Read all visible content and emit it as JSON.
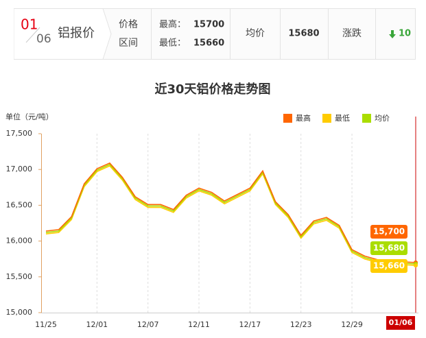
{
  "header": {
    "date_month": "01",
    "date_day": "06",
    "name": "铝报价",
    "range_label": [
      "价格",
      "区间"
    ],
    "high_label": "最高：",
    "high": 15700,
    "low_label": "最低：",
    "low": 15660,
    "avg_label": "均价",
    "avg": 15680,
    "change_label": "涨跌",
    "change": 10
  },
  "chart_data": {
    "type": "line",
    "title": "近30天铝价格走势图",
    "y_label": "单位（元/吨）",
    "categories": [
      "11/25",
      null,
      null,
      null,
      "12/01",
      null,
      null,
      null,
      "12/07",
      null,
      null,
      null,
      "12/11",
      null,
      null,
      null,
      "12/17",
      null,
      null,
      null,
      "12/23",
      null,
      null,
      null,
      "12/29",
      null,
      null,
      null,
      null,
      "01/06"
    ],
    "series": [
      {
        "name": "最高",
        "color": "#ff6600",
        "values": [
          16140,
          16160,
          16340,
          16800,
          17010,
          17090,
          16890,
          16620,
          16510,
          16510,
          16440,
          16640,
          16740,
          16680,
          16560,
          16650,
          16740,
          16980,
          16550,
          16370,
          16080,
          16280,
          16330,
          16220,
          15880,
          15790,
          15740,
          15720,
          15710,
          15700
        ],
        "value_labels": [
          null,
          null,
          null,
          null,
          null,
          null,
          null,
          null,
          null,
          null,
          null,
          null,
          null,
          null,
          null,
          null,
          null,
          null,
          null,
          null,
          null,
          null,
          null,
          null,
          null,
          null,
          null,
          null,
          null,
          "15,700"
        ]
      },
      {
        "name": "最低",
        "color": "#ffcc00",
        "values": [
          16100,
          16120,
          16300,
          16760,
          16970,
          17050,
          16850,
          16580,
          16470,
          16470,
          16400,
          16600,
          16700,
          16640,
          16520,
          16610,
          16700,
          16940,
          16510,
          16330,
          16040,
          16240,
          16290,
          16180,
          15840,
          15750,
          15700,
          15680,
          15670,
          15660
        ],
        "value_labels": [
          null,
          null,
          null,
          null,
          null,
          null,
          null,
          null,
          null,
          null,
          null,
          null,
          null,
          null,
          null,
          null,
          null,
          null,
          null,
          null,
          null,
          null,
          null,
          null,
          null,
          null,
          null,
          null,
          null,
          "15,660"
        ]
      },
      {
        "name": "均价",
        "color": "#aadd00",
        "values": [
          16120,
          16140,
          16320,
          16780,
          16990,
          17070,
          16870,
          16600,
          16490,
          16490,
          16420,
          16620,
          16720,
          16660,
          16540,
          16630,
          16720,
          16960,
          16530,
          16350,
          16060,
          16260,
          16310,
          16200,
          15860,
          15770,
          15720,
          15700,
          15690,
          15680
        ],
        "value_labels": [
          null,
          null,
          null,
          null,
          null,
          null,
          null,
          null,
          null,
          null,
          null,
          null,
          null,
          null,
          null,
          null,
          null,
          null,
          null,
          null,
          null,
          null,
          null,
          null,
          null,
          null,
          null,
          null,
          null,
          "15,680"
        ]
      }
    ],
    "ylim": [
      15000,
      17500
    ],
    "yticks": [
      {
        "value": 15000,
        "label": "15,000"
      },
      {
        "value": 15500,
        "label": "15,500"
      },
      {
        "value": 16000,
        "label": "16,000"
      },
      {
        "value": 16500,
        "label": "16,500"
      },
      {
        "value": 17000,
        "label": "17,000"
      },
      {
        "value": 17500,
        "label": "17,500"
      }
    ],
    "legend": "top-right"
  }
}
